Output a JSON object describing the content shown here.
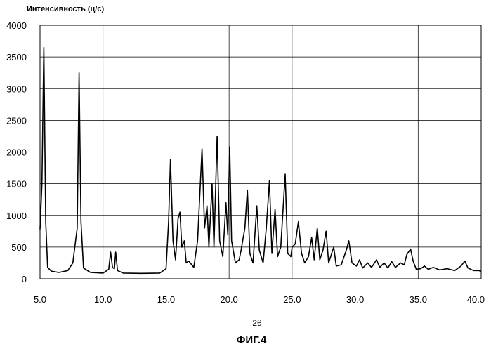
{
  "chart_data": {
    "type": "line",
    "ylabel": "Интенсивность (ц/с)",
    "xlabel": "2θ",
    "caption": "ФИГ.4",
    "xlim": [
      5.0,
      40.0
    ],
    "ylim": [
      0,
      4000
    ],
    "xticks": [
      "5.0",
      "10.0",
      "15.0",
      "20.0",
      "25.0",
      "30.0",
      "35.0",
      "40.0"
    ],
    "yticks": [
      "0",
      "500",
      "1000",
      "1500",
      "2000",
      "2500",
      "3000",
      "3500",
      "4000"
    ],
    "grid": true,
    "series": [
      {
        "values": [
          [
            5.0,
            780
          ],
          [
            5.15,
            1500
          ],
          [
            5.3,
            3650
          ],
          [
            5.45,
            900
          ],
          [
            5.6,
            180
          ],
          [
            5.9,
            120
          ],
          [
            6.5,
            100
          ],
          [
            7.2,
            130
          ],
          [
            7.6,
            250
          ],
          [
            7.95,
            800
          ],
          [
            8.1,
            3250
          ],
          [
            8.25,
            900
          ],
          [
            8.45,
            170
          ],
          [
            9.0,
            100
          ],
          [
            10.0,
            90
          ],
          [
            10.45,
            150
          ],
          [
            10.6,
            420
          ],
          [
            10.75,
            180
          ],
          [
            10.9,
            160
          ],
          [
            11.0,
            420
          ],
          [
            11.15,
            130
          ],
          [
            11.6,
            90
          ],
          [
            13.0,
            85
          ],
          [
            14.5,
            90
          ],
          [
            15.0,
            160
          ],
          [
            15.2,
            900
          ],
          [
            15.35,
            1880
          ],
          [
            15.55,
            600
          ],
          [
            15.75,
            300
          ],
          [
            15.95,
            950
          ],
          [
            16.1,
            1050
          ],
          [
            16.25,
            500
          ],
          [
            16.45,
            600
          ],
          [
            16.6,
            250
          ],
          [
            16.8,
            280
          ],
          [
            17.2,
            180
          ],
          [
            17.5,
            600
          ],
          [
            17.85,
            2050
          ],
          [
            18.05,
            800
          ],
          [
            18.25,
            1150
          ],
          [
            18.4,
            500
          ],
          [
            18.65,
            1500
          ],
          [
            18.8,
            500
          ],
          [
            19.05,
            2250
          ],
          [
            19.25,
            600
          ],
          [
            19.5,
            350
          ],
          [
            19.75,
            1200
          ],
          [
            19.9,
            700
          ],
          [
            20.05,
            2080
          ],
          [
            20.2,
            600
          ],
          [
            20.5,
            250
          ],
          [
            20.8,
            300
          ],
          [
            20.95,
            450
          ],
          [
            21.25,
            800
          ],
          [
            21.45,
            1400
          ],
          [
            21.65,
            400
          ],
          [
            21.9,
            250
          ],
          [
            22.2,
            1150
          ],
          [
            22.4,
            450
          ],
          [
            22.7,
            250
          ],
          [
            22.95,
            800
          ],
          [
            23.2,
            1550
          ],
          [
            23.4,
            400
          ],
          [
            23.65,
            1100
          ],
          [
            23.85,
            350
          ],
          [
            24.1,
            500
          ],
          [
            24.45,
            1650
          ],
          [
            24.65,
            400
          ],
          [
            24.9,
            350
          ],
          [
            25.0,
            500
          ],
          [
            25.25,
            550
          ],
          [
            25.5,
            900
          ],
          [
            25.75,
            400
          ],
          [
            26.0,
            250
          ],
          [
            26.3,
            350
          ],
          [
            26.55,
            650
          ],
          [
            26.75,
            300
          ],
          [
            27.0,
            800
          ],
          [
            27.2,
            300
          ],
          [
            27.45,
            450
          ],
          [
            27.7,
            750
          ],
          [
            27.9,
            250
          ],
          [
            28.3,
            500
          ],
          [
            28.5,
            200
          ],
          [
            28.9,
            220
          ],
          [
            29.3,
            450
          ],
          [
            29.5,
            600
          ],
          [
            29.75,
            250
          ],
          [
            30.1,
            200
          ],
          [
            30.35,
            300
          ],
          [
            30.6,
            170
          ],
          [
            31.0,
            250
          ],
          [
            31.3,
            180
          ],
          [
            31.7,
            300
          ],
          [
            31.95,
            180
          ],
          [
            32.3,
            250
          ],
          [
            32.6,
            170
          ],
          [
            32.9,
            270
          ],
          [
            33.2,
            180
          ],
          [
            33.6,
            250
          ],
          [
            33.9,
            220
          ],
          [
            34.1,
            380
          ],
          [
            34.4,
            470
          ],
          [
            34.6,
            280
          ],
          [
            34.85,
            150
          ],
          [
            35.2,
            160
          ],
          [
            35.5,
            200
          ],
          [
            35.8,
            150
          ],
          [
            36.2,
            180
          ],
          [
            36.7,
            140
          ],
          [
            37.3,
            160
          ],
          [
            37.9,
            130
          ],
          [
            38.4,
            200
          ],
          [
            38.7,
            280
          ],
          [
            38.95,
            170
          ],
          [
            39.4,
            130
          ],
          [
            39.8,
            130
          ],
          [
            40.0,
            120
          ]
        ]
      }
    ]
  }
}
